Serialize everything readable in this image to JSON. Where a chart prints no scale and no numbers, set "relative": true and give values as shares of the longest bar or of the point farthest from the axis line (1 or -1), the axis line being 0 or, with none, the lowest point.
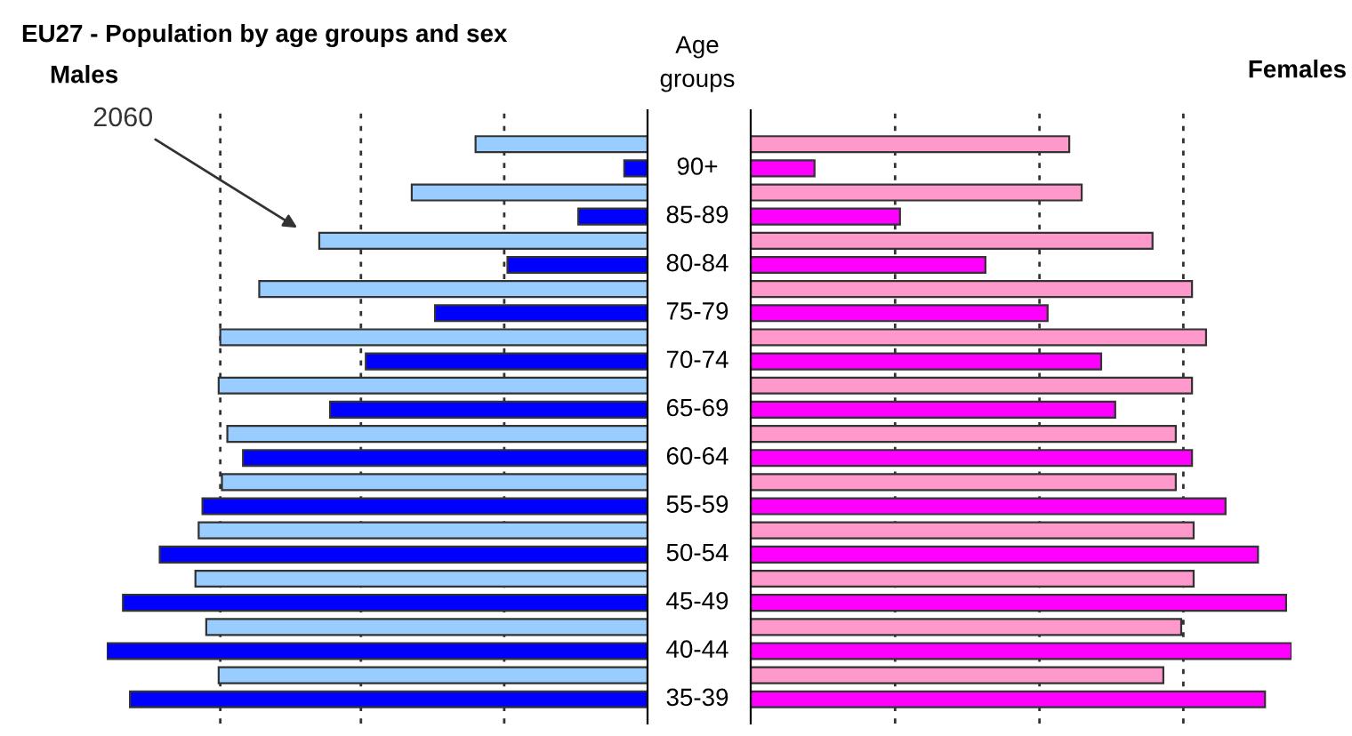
{
  "chart_data": [
    {
      "type": "bar",
      "orientation": "horizontal",
      "relative": true,
      "title": "EU27 - Population by age groups and sex",
      "subtitle": "Males",
      "ylabel": "Age groups",
      "tick_labels": "y",
      "categories": [
        "90+",
        "85-89",
        "80-84",
        "75-79",
        "70-74",
        "65-69",
        "60-64",
        "55-59",
        "50-54",
        "45-49",
        "40-44",
        "35-39"
      ],
      "annotations": [
        "2060"
      ],
      "ref_lines": [
        {
          "axis": "x",
          "value": 0.265,
          "line_style": "dotted"
        },
        {
          "axis": "x",
          "value": 0.53,
          "line_style": "dotted"
        },
        {
          "axis": "x",
          "value": 0.79,
          "line_style": "dotted"
        }
      ],
      "series": [
        {
          "color": "#99ccff",
          "values": [
            0.318,
            0.436,
            0.607,
            0.718,
            0.79,
            0.793,
            0.777,
            0.787,
            0.83,
            0.836,
            0.816,
            0.793
          ]
        },
        {
          "color": "#0000ff",
          "values": [
            0.043,
            0.128,
            0.259,
            0.393,
            0.521,
            0.587,
            0.748,
            0.823,
            0.902,
            0.97,
            1,
            0.957
          ]
        }
      ]
    },
    {
      "type": "bar",
      "orientation": "horizontal",
      "relative": true,
      "subtitle": "Females",
      "tick_labels": false,
      "categories": [
        null,
        null,
        null,
        null,
        null,
        null,
        null,
        null,
        null,
        null,
        null,
        null
      ],
      "ref_lines": [
        {
          "axis": "x",
          "value": 0.267,
          "line_style": "dotted"
        },
        {
          "axis": "x",
          "value": 0.534,
          "line_style": "dotted"
        },
        {
          "axis": "x",
          "value": 0.8,
          "line_style": "dotted"
        }
      ],
      "series": [
        {
          "color": "#ff99cc",
          "values": [
            0.589,
            0.612,
            0.743,
            0.816,
            0.842,
            0.816,
            0.786,
            0.786,
            0.819,
            0.819,
            0.796,
            0.763
          ]
        },
        {
          "color": "#ff00ff",
          "values": [
            0.118,
            0.276,
            0.434,
            0.549,
            0.648,
            0.674,
            0.816,
            0.878,
            0.938,
            0.99,
            1,
            0.951
          ]
        }
      ]
    }
  ]
}
